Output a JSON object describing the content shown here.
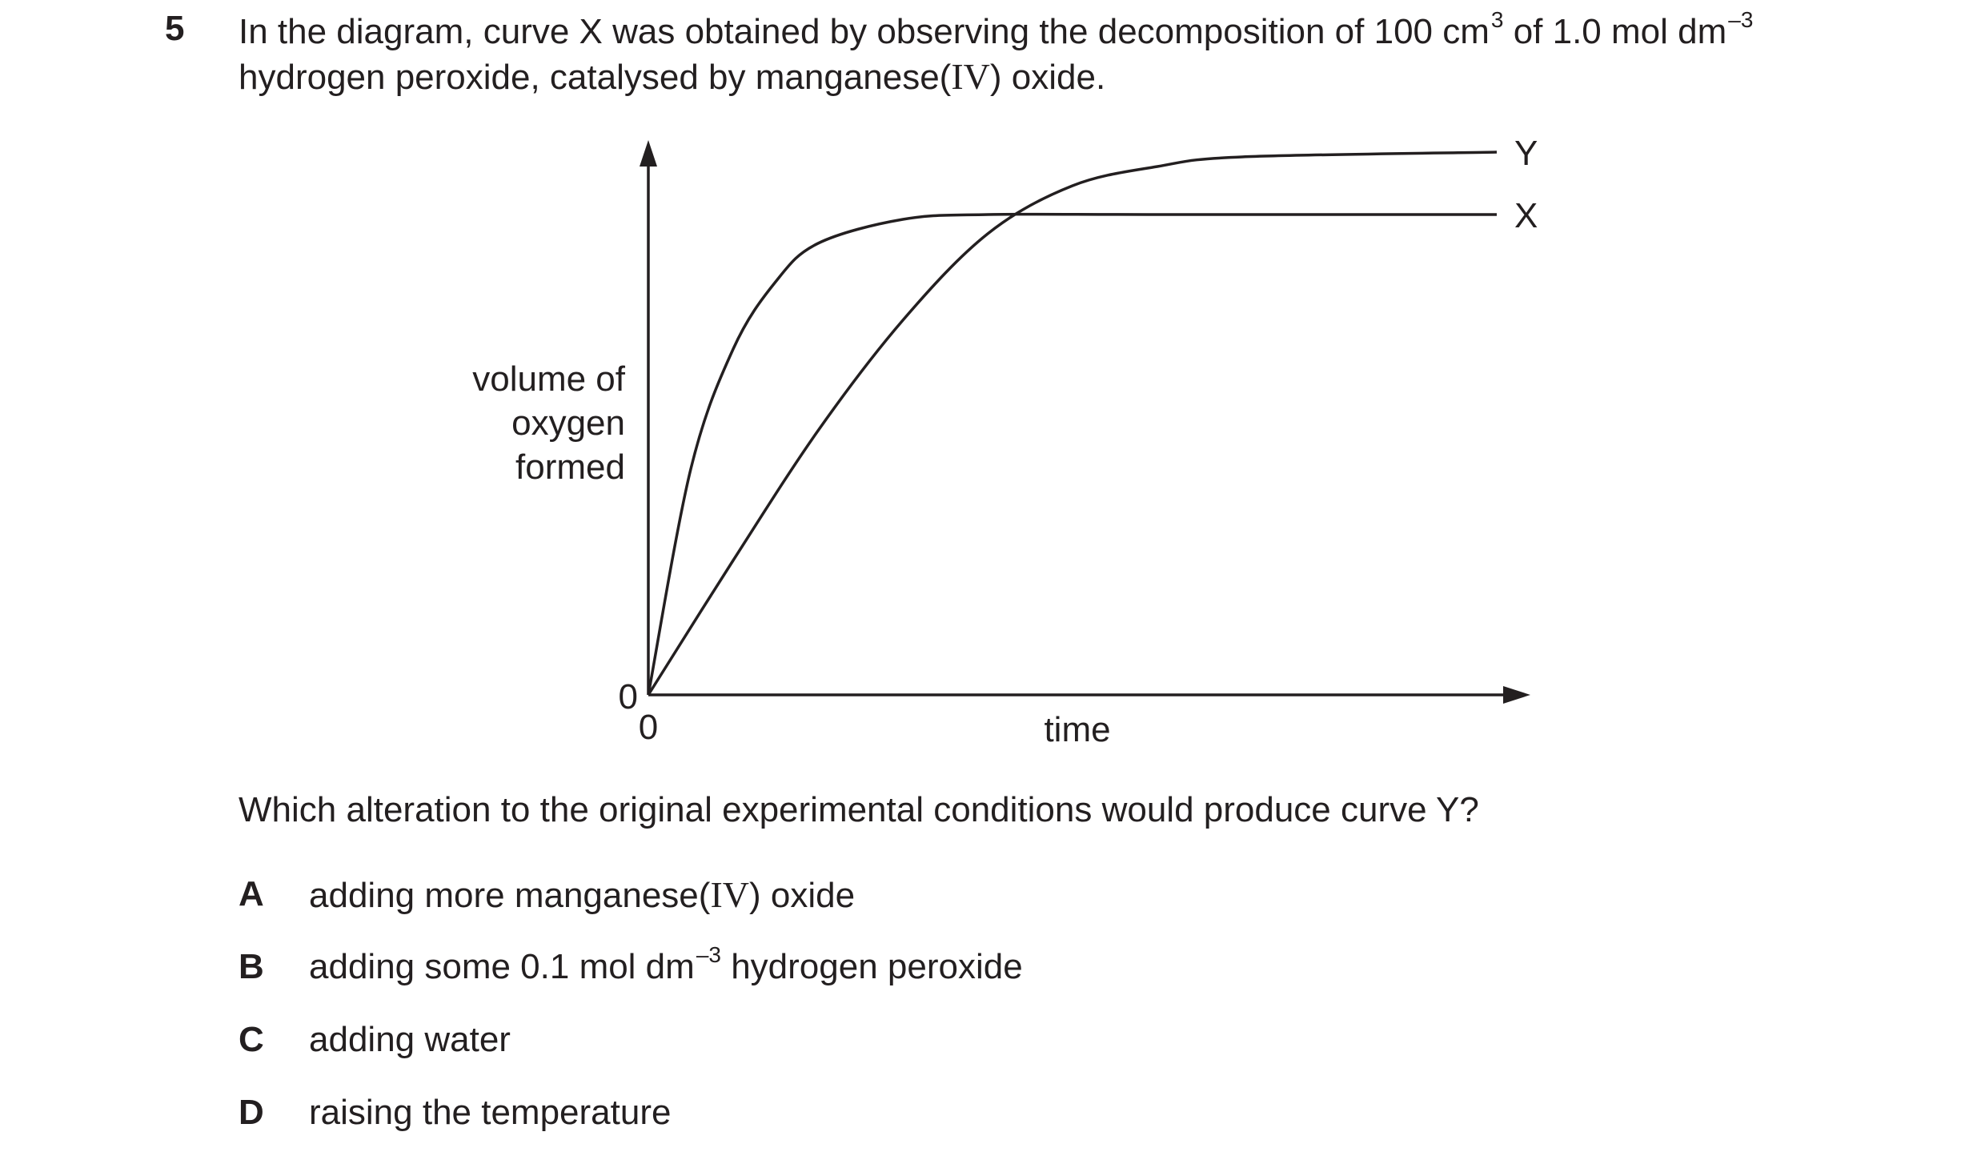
{
  "question": {
    "number": "5",
    "stem_part1": "In the diagram, curve X was obtained by observing the decomposition of 100 cm",
    "stem_sup1": "3",
    "stem_part2": " of 1.0 mol dm",
    "stem_sup2": "–3",
    "stem_line2_a": "hydrogen peroxide, catalysed by manganese(",
    "stem_line2_roman": "IV",
    "stem_line2_b": ") oxide.",
    "prompt": "Which alteration to the original experimental conditions would produce curve Y?"
  },
  "chart_data": {
    "type": "line",
    "xlabel": "time",
    "ylabel": "volume of oxygen formed",
    "ylabel_lines": [
      "volume of",
      "oxygen",
      "formed"
    ],
    "x_origin_label": "0",
    "y_origin_label": "0",
    "series": [
      {
        "name": "X",
        "points": [
          [
            0,
            0
          ],
          [
            0.5,
            0.47
          ],
          [
            1,
            0.72
          ],
          [
            1.5,
            0.86
          ],
          [
            2,
            0.94
          ],
          [
            3,
            0.99
          ],
          [
            4,
            1.0
          ],
          [
            6,
            1.0
          ],
          [
            10,
            1.0
          ]
        ]
      },
      {
        "name": "Y",
        "points": [
          [
            0,
            0
          ],
          [
            1,
            0.28
          ],
          [
            2,
            0.55
          ],
          [
            3,
            0.78
          ],
          [
            4,
            0.96
          ],
          [
            5,
            1.06
          ],
          [
            6,
            1.1
          ],
          [
            7,
            1.12
          ],
          [
            10,
            1.13
          ]
        ]
      }
    ]
  },
  "options": [
    {
      "letter": "A",
      "text_a": "adding more manganese(",
      "roman": "IV",
      "text_b": ") oxide"
    },
    {
      "letter": "B",
      "text_a": "adding some 0.1 mol dm",
      "sup": "–3",
      "text_b": " hydrogen peroxide"
    },
    {
      "letter": "C",
      "text_a": "adding water"
    },
    {
      "letter": "D",
      "text_a": "raising the temperature"
    }
  ],
  "colors": {
    "ink": "#231f20",
    "background": "#ffffff"
  }
}
